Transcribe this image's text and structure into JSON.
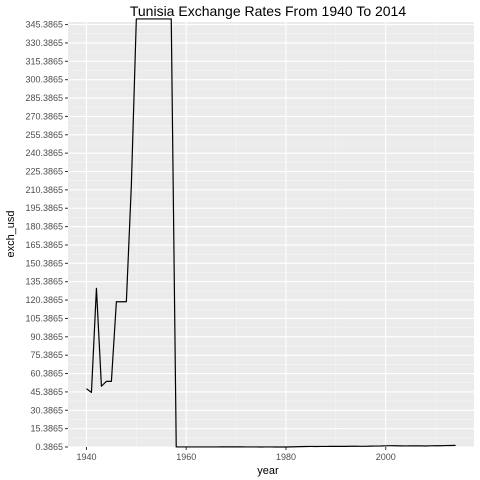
{
  "chart_data": {
    "type": "line",
    "title": "Tunisia Exchange Rates From 1940 To 2014",
    "xlabel": "year",
    "ylabel": "exch_usd",
    "xlim": [
      1936.3,
      2017.7
    ],
    "ylim": [
      0.3865,
      347.5
    ],
    "x_ticks": [
      1940,
      1960,
      1980,
      2000
    ],
    "y_ticks": [
      "0.3865",
      "15.3865",
      "30.3865",
      "45.3865",
      "60.3865",
      "75.3865",
      "90.3865",
      "105.3865",
      "120.3865",
      "135.3865",
      "150.3865",
      "165.3865",
      "180.3865",
      "195.3865",
      "210.3865",
      "225.3865",
      "240.3865",
      "255.3865",
      "270.3865",
      "285.3865",
      "300.3865",
      "315.3865",
      "330.3865",
      "345.3865"
    ],
    "grid": true,
    "panel_background": "#ebebeb",
    "line_color": "#000000",
    "series": [
      {
        "x": [
          1940,
          1941,
          1942,
          1943,
          1944,
          1945,
          1946,
          1947,
          1948,
          1949,
          1950,
          1951,
          1952,
          1953,
          1954,
          1955,
          1956,
          1957,
          1958,
          1959,
          1960,
          1961,
          1962,
          1963,
          1964,
          1965,
          1966,
          1967,
          1968,
          1969,
          1970,
          1971,
          1972,
          1973,
          1974,
          1975,
          1976,
          1977,
          1978,
          1979,
          1980,
          1981,
          1982,
          1983,
          1984,
          1985,
          1986,
          1987,
          1988,
          1989,
          1990,
          1991,
          1992,
          1993,
          1994,
          1995,
          1996,
          1997,
          1998,
          1999,
          2000,
          2001,
          2002,
          2003,
          2004,
          2005,
          2006,
          2007,
          2008,
          2009,
          2010,
          2011,
          2012,
          2013,
          2014
        ],
        "y": [
          48.0,
          45.0,
          130.0,
          50.0,
          54.0,
          54.0,
          119.0,
          119.0,
          119.0,
          214.0,
          350.0,
          350.0,
          350.0,
          350.0,
          350.0,
          350.0,
          350.0,
          350.0,
          0.42,
          0.42,
          0.42,
          0.42,
          0.42,
          0.42,
          0.42,
          0.44,
          0.44,
          0.52,
          0.52,
          0.52,
          0.52,
          0.5,
          0.45,
          0.45,
          0.44,
          0.4,
          0.42,
          0.42,
          0.41,
          0.41,
          0.41,
          0.48,
          0.6,
          0.68,
          0.78,
          0.83,
          0.79,
          0.83,
          0.86,
          0.95,
          0.88,
          0.93,
          0.88,
          1.0,
          1.01,
          0.95,
          0.97,
          1.11,
          1.14,
          1.19,
          1.37,
          1.44,
          1.42,
          1.29,
          1.25,
          1.3,
          1.33,
          1.28,
          1.23,
          1.35,
          1.43,
          1.41,
          1.56,
          1.62,
          1.7
        ]
      }
    ]
  }
}
